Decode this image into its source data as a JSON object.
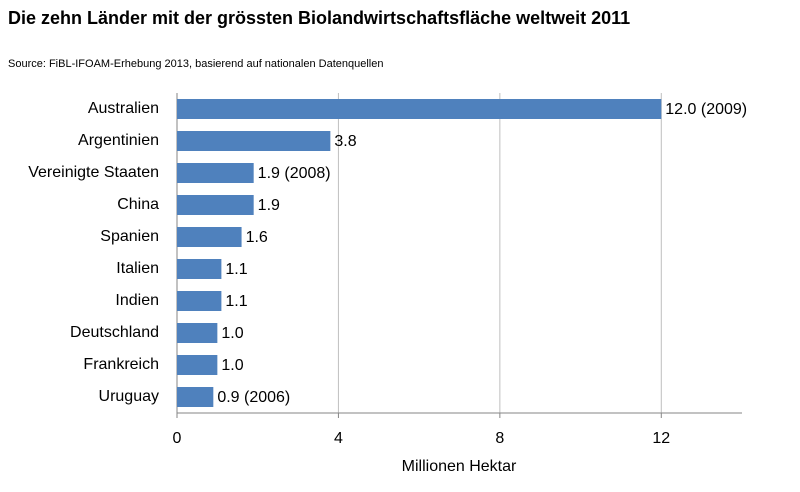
{
  "chart_data": {
    "type": "bar",
    "orientation": "horizontal",
    "title": "Die zehn Länder mit der grössten Biolandwirtschaftsfläche weltweit 2011",
    "subtitle": "Source: FiBL-IFOAM-Erhebung 2013, basierend auf nationalen Datenquellen",
    "x_label": "Millionen Hektar",
    "categories": [
      "Australien",
      "Argentinien",
      "Vereinigte Staaten",
      "China",
      "Spanien",
      "Italien",
      "Indien",
      "Deutschland",
      "Frankreich",
      "Uruguay"
    ],
    "values": [
      12.0,
      3.8,
      1.9,
      1.9,
      1.6,
      1.1,
      1.1,
      1.0,
      1.0,
      0.9
    ],
    "value_labels": [
      "12.0 (2009)",
      "3.8",
      "1.9 (2008)",
      "1.9",
      "1.6",
      "1.1",
      "1.1",
      "1.0",
      "1.0",
      "0.9 (2006)"
    ],
    "color": "#4f81bd",
    "xlim": [
      0,
      14
    ],
    "xticks": [
      0,
      4,
      8,
      12
    ],
    "grid": true
  }
}
